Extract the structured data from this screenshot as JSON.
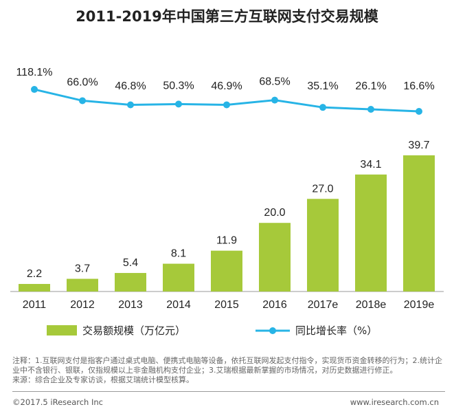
{
  "chart_data": {
    "type": "bar+line",
    "title": "2011-2019年中国第三方互联网支付交易规模",
    "categories": [
      "2011",
      "2012",
      "2013",
      "2014",
      "2015",
      "2016",
      "2017e",
      "2018e",
      "2019e"
    ],
    "series": [
      {
        "name": "交易额规模（万亿元）",
        "type": "bar",
        "values": [
          2.2,
          3.7,
          5.4,
          8.1,
          11.9,
          20.0,
          27.0,
          34.1,
          39.7
        ],
        "labels": [
          "2.2",
          "3.7",
          "5.4",
          "8.1",
          "11.9",
          "20.0",
          "27.0",
          "34.1",
          "39.7"
        ]
      },
      {
        "name": "同比增长率（%）",
        "type": "line",
        "values": [
          118.1,
          66.0,
          46.8,
          50.3,
          46.9,
          68.5,
          35.1,
          26.1,
          16.6
        ],
        "labels": [
          "118.1%",
          "66.0%",
          "46.8%",
          "50.3%",
          "46.9%",
          "68.5%",
          "35.1%",
          "26.1%",
          "16.6%"
        ]
      }
    ],
    "colors": {
      "bar": "#a6c93a",
      "line": "#27b4e6"
    },
    "legend_placement": "bottom"
  },
  "notes": [
    "注释：1.互联网支付是指客户通过桌式电脑、便携式电脑等设备，依托互联网发起支付指令，实现货币资金转移的行为；2.统计企业中不含银行、银联，仅指规模以上非金融机构支付企业；3.艾瑞根据最新掌握的市场情况，对历史数据进行修正。",
    "来源：综合企业及专家访谈，根据艾瑞统计模型核算。"
  ],
  "footer": {
    "copyright": "©2017.5 iResearch Inc",
    "url": "www.iresearch.com.cn"
  }
}
